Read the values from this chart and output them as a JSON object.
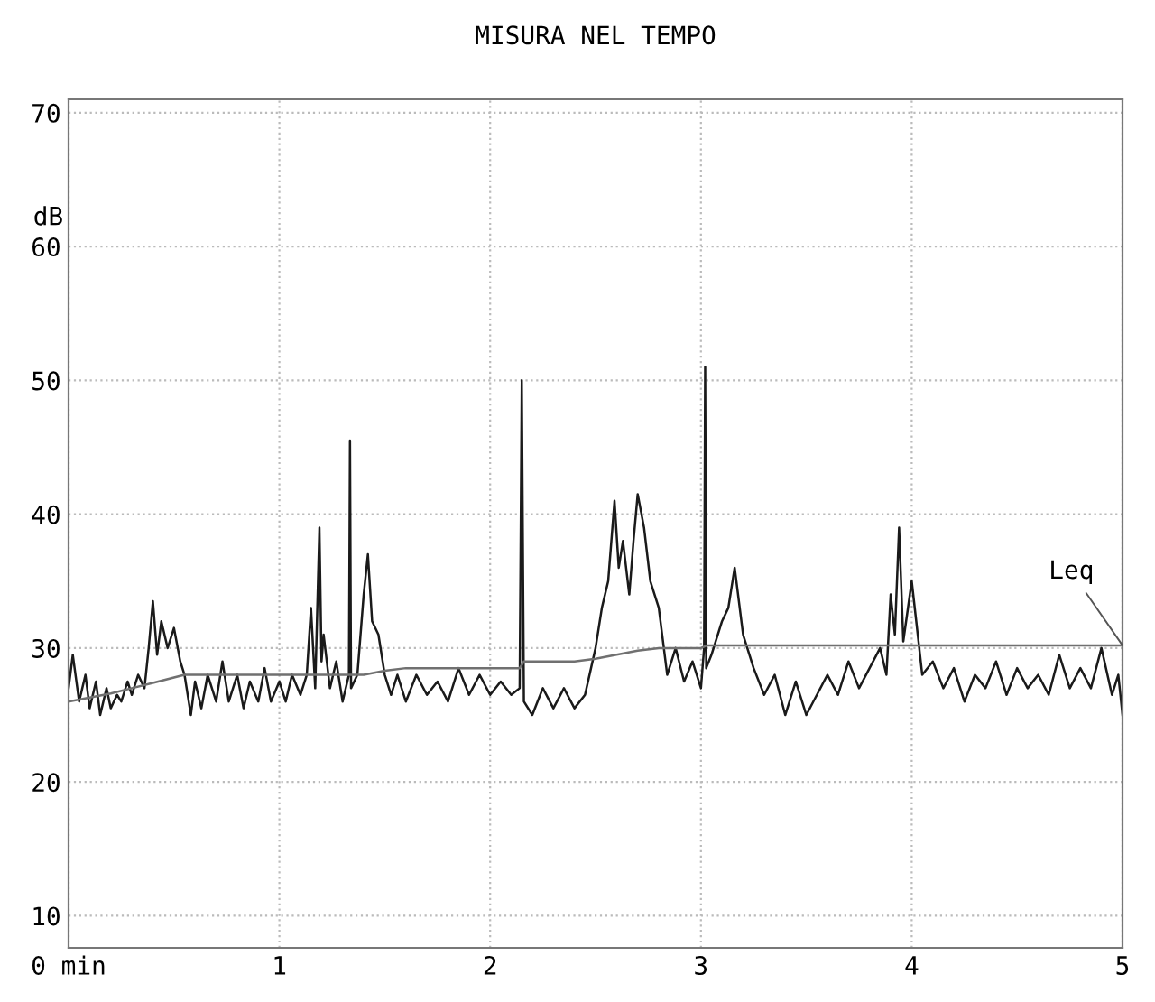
{
  "chart_data": {
    "type": "line",
    "title": "MISURA NEL TEMPO",
    "ylabel": "dB",
    "xlim": [
      0,
      5
    ],
    "ylim": [
      7.6,
      71
    ],
    "xticks": [
      {
        "value": 0,
        "label": "0 min"
      },
      1,
      2,
      3,
      4,
      5
    ],
    "yticks": [
      10,
      20,
      30,
      40,
      50,
      60,
      70
    ],
    "grid": true,
    "legend": false,
    "marker": "none",
    "line_style": "solid",
    "annotations": [
      {
        "text": "Leq",
        "x": 5,
        "y": 30.2
      }
    ],
    "series": [
      {
        "color": "#1a1a1a",
        "x": [
          0,
          0.02,
          0.05,
          0.08,
          0.1,
          0.13,
          0.15,
          0.18,
          0.2,
          0.23,
          0.25,
          0.28,
          0.3,
          0.33,
          0.36,
          0.38,
          0.4,
          0.42,
          0.44,
          0.47,
          0.5,
          0.53,
          0.55,
          0.58,
          0.6,
          0.63,
          0.66,
          0.7,
          0.73,
          0.76,
          0.8,
          0.83,
          0.86,
          0.9,
          0.93,
          0.96,
          1.0,
          1.03,
          1.06,
          1.1,
          1.13,
          1.15,
          1.17,
          1.19,
          1.2,
          1.21,
          1.24,
          1.27,
          1.3,
          1.33,
          1.335,
          1.34,
          1.37,
          1.4,
          1.42,
          1.44,
          1.47,
          1.5,
          1.53,
          1.56,
          1.6,
          1.65,
          1.7,
          1.75,
          1.8,
          1.85,
          1.9,
          1.95,
          2.0,
          2.05,
          2.1,
          2.14,
          2.15,
          2.16,
          2.2,
          2.25,
          2.3,
          2.35,
          2.4,
          2.45,
          2.5,
          2.53,
          2.56,
          2.59,
          2.61,
          2.63,
          2.66,
          2.68,
          2.7,
          2.73,
          2.76,
          2.8,
          2.84,
          2.88,
          2.92,
          2.96,
          3.0,
          3.015,
          3.02,
          3.025,
          3.05,
          3.1,
          3.13,
          3.16,
          3.2,
          3.25,
          3.3,
          3.35,
          3.4,
          3.45,
          3.5,
          3.55,
          3.6,
          3.65,
          3.7,
          3.75,
          3.8,
          3.85,
          3.88,
          3.9,
          3.92,
          3.94,
          3.96,
          4.0,
          4.05,
          4.1,
          4.15,
          4.2,
          4.25,
          4.3,
          4.35,
          4.4,
          4.45,
          4.5,
          4.55,
          4.6,
          4.65,
          4.7,
          4.75,
          4.8,
          4.85,
          4.9,
          4.95,
          4.98,
          5.0
        ],
        "values": [
          27,
          29.5,
          26,
          28,
          25.5,
          27.5,
          25,
          27,
          25.5,
          26.5,
          26,
          27.5,
          26.5,
          28,
          27,
          30,
          33.5,
          29.5,
          32,
          30,
          31.5,
          29,
          28,
          25,
          27.5,
          25.5,
          28,
          26,
          29,
          26,
          28,
          25.5,
          27.5,
          26,
          28.5,
          26,
          27.5,
          26,
          28,
          26.5,
          28,
          33,
          27,
          39,
          29,
          31,
          27,
          29,
          26,
          28,
          45.5,
          27,
          28,
          34,
          37,
          32,
          31,
          28,
          26.5,
          28,
          26,
          28,
          26.5,
          27.5,
          26,
          28.5,
          26.5,
          28,
          26.5,
          27.5,
          26.5,
          27,
          50,
          26,
          25,
          27,
          25.5,
          27,
          25.5,
          26.5,
          30,
          33,
          35,
          41,
          36,
          38,
          34,
          38,
          41.5,
          39,
          35,
          33,
          28,
          30,
          27.5,
          29,
          27,
          30,
          51,
          28.5,
          29.5,
          32,
          33,
          36,
          31,
          28.5,
          26.5,
          28,
          25,
          27.5,
          25,
          26.5,
          28,
          26.5,
          29,
          27,
          28.5,
          30,
          28,
          34,
          31,
          39,
          30.5,
          35,
          28,
          29,
          27,
          28.5,
          26,
          28,
          27,
          29,
          26.5,
          28.5,
          27,
          28,
          26.5,
          29.5,
          27,
          28.5,
          27,
          30,
          26.5,
          28,
          25
        ]
      },
      {
        "color": "#707070",
        "x": [
          0,
          0.1,
          0.2,
          0.3,
          0.4,
          0.5,
          0.55,
          0.8,
          1.1,
          1.4,
          1.5,
          1.6,
          2.0,
          2.14,
          2.16,
          2.4,
          2.5,
          2.6,
          2.7,
          2.8,
          3.0,
          3.03,
          3.5,
          4.0,
          4.5,
          5.0
        ],
        "values": [
          26,
          26.3,
          26.6,
          27,
          27.4,
          27.8,
          28,
          28,
          28,
          28,
          28.3,
          28.5,
          28.5,
          28.5,
          29,
          29,
          29.2,
          29.5,
          29.8,
          30,
          30,
          30.2,
          30.2,
          30.2,
          30.2,
          30.2
        ]
      }
    ]
  }
}
